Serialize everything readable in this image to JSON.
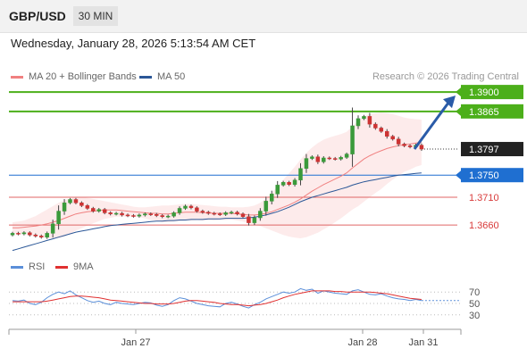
{
  "header": {
    "symbol": "GBP/USD",
    "timeframe": "30 MIN"
  },
  "datetime": "Wednesday, January 28, 2026 5:13:54 AM CET",
  "legend": {
    "ma20": {
      "label": "MA 20 + Bollinger Bands",
      "color": "#f08080"
    },
    "ma50": {
      "label": "MA 50",
      "color": "#2b5797"
    }
  },
  "research_credit": "Research © 2026 Trading Central",
  "levels": [
    {
      "label": "1.3900",
      "value": 1.39,
      "kind": "target"
    },
    {
      "label": "1.3865",
      "value": 1.3865,
      "kind": "target"
    },
    {
      "label": "1.3797",
      "value": 1.3797,
      "kind": "current"
    },
    {
      "label": "1.3750",
      "value": 1.375,
      "kind": "pivot"
    },
    {
      "label": "1.3710",
      "value": 1.371,
      "kind": "support"
    },
    {
      "label": "1.3660",
      "value": 1.366,
      "kind": "support"
    }
  ],
  "colors": {
    "target": "#4caf1a",
    "pivot": "#1f6fd1",
    "support": "#e06666",
    "support_text": "#d83a3a",
    "current_bg": "#222222",
    "bull": "#3a9a3a",
    "bear": "#cc3333",
    "arrow": "#2a5ba8",
    "rsi": "#5b8fd9",
    "rsi_ma": "#e03030"
  },
  "rsi": {
    "legend": {
      "rsi_label": "RSI",
      "ma_label": "9MA"
    },
    "levels": [
      "70",
      "50",
      "30"
    ]
  },
  "xaxis": {
    "labels": [
      "Jan 27",
      "Jan 28",
      "Jan 31"
    ]
  },
  "chart_data": {
    "type": "candlestick",
    "series_closes": [
      1.3645,
      1.3644,
      1.3646,
      1.3642,
      1.364,
      1.3638,
      1.3645,
      1.3662,
      1.3685,
      1.37,
      1.3706,
      1.37,
      1.3695,
      1.369,
      1.3685,
      1.3688,
      1.3682,
      1.368,
      1.3681,
      1.3678,
      1.3677,
      1.3676,
      1.3678,
      1.368,
      1.3679,
      1.3677,
      1.3675,
      1.3676,
      1.3682,
      1.369,
      1.3694,
      1.3691,
      1.3685,
      1.3683,
      1.3681,
      1.368,
      1.3679,
      1.3682,
      1.3683,
      1.368,
      1.3675,
      1.3664,
      1.3673,
      1.3685,
      1.3703,
      1.3716,
      1.3732,
      1.3737,
      1.3733,
      1.3741,
      1.3762,
      1.378,
      1.3783,
      1.3774,
      1.3781,
      1.378,
      1.3779,
      1.3782,
      1.3788,
      1.3839,
      1.3852,
      1.3856,
      1.3842,
      1.3835,
      1.3829,
      1.382,
      1.3815,
      1.3806,
      1.3803,
      1.3801,
      1.3804,
      1.3797
    ],
    "ma20": [
      1.3655,
      1.3655,
      1.3656,
      1.3657,
      1.3658,
      1.366,
      1.3662,
      1.3665,
      1.3668,
      1.3672,
      1.3676,
      1.368,
      1.3682,
      1.3684,
      1.3685,
      1.3686,
      1.3687,
      1.3687,
      1.3687,
      1.3686,
      1.3685,
      1.3684,
      1.3683,
      1.3682,
      1.3681,
      1.3681,
      1.368,
      1.368,
      1.3681,
      1.3682,
      1.3683,
      1.3683,
      1.3683,
      1.3682,
      1.3682,
      1.3681,
      1.3681,
      1.3681,
      1.3681,
      1.368,
      1.3679,
      1.3678,
      1.3678,
      1.3679,
      1.3681,
      1.3684,
      1.3688,
      1.3692,
      1.3696,
      1.3701,
      1.3707,
      1.3714,
      1.3721,
      1.3727,
      1.3733,
      1.3738,
      1.3743,
      1.3748,
      1.3754,
      1.3763,
      1.3771,
      1.3779,
      1.3785,
      1.379,
      1.3794,
      1.3798,
      1.3801,
      1.3803,
      1.3805,
      1.3806,
      1.3808,
      1.3809
    ],
    "bb_upper": [
      1.3665,
      1.3666,
      1.3668,
      1.3672,
      1.3676,
      1.3682,
      1.3688,
      1.3694,
      1.37,
      1.3705,
      1.3708,
      1.371,
      1.371,
      1.3709,
      1.3707,
      1.3705,
      1.3703,
      1.3701,
      1.3699,
      1.3697,
      1.3695,
      1.3693,
      1.3692,
      1.3692,
      1.3693,
      1.3694,
      1.3695,
      1.3695,
      1.3696,
      1.3697,
      1.3698,
      1.3698,
      1.3697,
      1.3696,
      1.3695,
      1.3694,
      1.3693,
      1.3693,
      1.3692,
      1.3692,
      1.3692,
      1.3693,
      1.3695,
      1.37,
      1.3708,
      1.3718,
      1.373,
      1.3742,
      1.3753,
      1.3765,
      1.3778,
      1.379,
      1.38,
      1.3808,
      1.3814,
      1.3818,
      1.3821,
      1.3824,
      1.3828,
      1.3838,
      1.3848,
      1.3856,
      1.386,
      1.3862,
      1.3863,
      1.3862,
      1.386,
      1.3857,
      1.3854,
      1.3852,
      1.3851,
      1.385
    ],
    "bb_lower": [
      1.3645,
      1.3644,
      1.3643,
      1.3642,
      1.364,
      1.3638,
      1.3636,
      1.3636,
      1.3636,
      1.3639,
      1.3644,
      1.365,
      1.3654,
      1.3659,
      1.3663,
      1.3667,
      1.3671,
      1.3673,
      1.3675,
      1.3675,
      1.3675,
      1.3675,
      1.3674,
      1.3672,
      1.3669,
      1.3668,
      1.3665,
      1.3665,
      1.3666,
      1.3667,
      1.3668,
      1.3668,
      1.3669,
      1.3668,
      1.3669,
      1.3668,
      1.3669,
      1.3669,
      1.367,
      1.3668,
      1.3666,
      1.3663,
      1.3661,
      1.3658,
      1.3654,
      1.365,
      1.3646,
      1.3642,
      1.3639,
      1.3637,
      1.3636,
      1.3638,
      1.3642,
      1.3646,
      1.3652,
      1.3658,
      1.3665,
      1.3672,
      1.368,
      1.3688,
      1.3694,
      1.3702,
      1.371,
      1.3718,
      1.3725,
      1.3734,
      1.3742,
      1.3749,
      1.3756,
      1.376,
      1.3765,
      1.3768
    ],
    "ma50": [
      1.3614,
      1.3617,
      1.362,
      1.3623,
      1.3626,
      1.3629,
      1.3632,
      1.3635,
      1.3638,
      1.3641,
      1.3644,
      1.3647,
      1.3649,
      1.3651,
      1.3653,
      1.3655,
      1.3657,
      1.3659,
      1.366,
      1.3661,
      1.3662,
      1.3663,
      1.3664,
      1.3665,
      1.3666,
      1.3667,
      1.3667,
      1.3668,
      1.3668,
      1.3669,
      1.3669,
      1.367,
      1.367,
      1.367,
      1.3671,
      1.3671,
      1.3671,
      1.3672,
      1.3672,
      1.3672,
      1.3672,
      1.3673,
      1.3674,
      1.3676,
      1.3678,
      1.3681,
      1.3684,
      1.3688,
      1.3692,
      1.3697,
      1.3702,
      1.3706,
      1.371,
      1.3713,
      1.3716,
      1.3719,
      1.3722,
      1.3725,
      1.3728,
      1.3732,
      1.3735,
      1.3738,
      1.374,
      1.3742,
      1.3744,
      1.3746,
      1.3748,
      1.375,
      1.3751,
      1.3752,
      1.3753,
      1.3754
    ],
    "rsi": [
      55,
      54,
      56,
      50,
      48,
      52,
      60,
      66,
      70,
      67,
      72,
      65,
      60,
      55,
      52,
      54,
      50,
      48,
      52,
      50,
      49,
      48,
      50,
      52,
      51,
      47,
      45,
      48,
      55,
      60,
      58,
      54,
      50,
      48,
      46,
      45,
      44,
      50,
      52,
      49,
      45,
      42,
      48,
      52,
      58,
      62,
      66,
      70,
      68,
      70,
      76,
      73,
      75,
      68,
      72,
      70,
      68,
      67,
      66,
      72,
      74,
      70,
      66,
      65,
      67,
      63,
      60,
      58,
      57,
      55,
      57,
      55
    ],
    "rsi_ma": [
      53,
      53,
      53,
      53,
      53,
      53,
      54,
      56,
      58,
      60,
      62,
      63,
      63,
      62,
      61,
      60,
      58,
      56,
      55,
      54,
      53,
      52,
      51,
      50,
      50,
      49,
      49,
      49,
      50,
      52,
      54,
      55,
      55,
      54,
      53,
      52,
      50,
      49,
      48,
      48,
      47,
      46,
      47,
      48,
      50,
      53,
      56,
      60,
      63,
      66,
      68,
      70,
      72,
      72,
      72,
      72,
      71,
      71,
      70,
      70,
      70,
      70,
      70,
      69,
      68,
      67,
      65,
      63,
      61,
      59,
      58,
      57
    ],
    "ylim": [
      1.3615,
      1.3905
    ]
  }
}
